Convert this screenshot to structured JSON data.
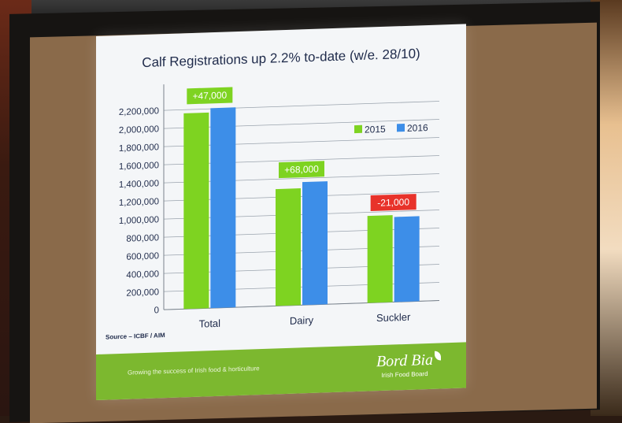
{
  "slide": {
    "title": "Calf Registrations up 2.2% to-date (w/e. 28/10)",
    "source": "Source – ICBF / AIM",
    "tagline": "Growing the success of Irish food & horticulture",
    "brand_name": "Bord Bia",
    "brand_sub": "Irish Food Board"
  },
  "chart_data": {
    "type": "bar",
    "title": "Calf Registrations up 2.2% to-date (w/e. 28/10)",
    "categories": [
      "Total",
      "Dairy",
      "Suckler"
    ],
    "series": [
      {
        "name": "2015",
        "values": [
          2160000,
          1290000,
          960000
        ]
      },
      {
        "name": "2016",
        "values": [
          2207000,
          1358000,
          939000
        ]
      }
    ],
    "annotations": [
      "+47,000",
      "+68,000",
      "-21,000"
    ],
    "ylim": [
      0,
      2400000
    ],
    "yticks": [
      0,
      200000,
      400000,
      600000,
      800000,
      1000000,
      1200000,
      1400000,
      1600000,
      1800000,
      2000000,
      2200000
    ],
    "ytick_labels": [
      "0",
      "200,000",
      "400,000",
      "600,000",
      "800,000",
      "1,000,000",
      "1,200,000",
      "1,400,000",
      "1,600,000",
      "1,800,000",
      "2,000,000",
      "2,200,000"
    ],
    "grid": true,
    "legend_position": "top-right",
    "colors": {
      "2015": "#7ed321",
      "2016": "#3d8ee8",
      "positive": "#7ed321",
      "negative": "#e8322a"
    }
  }
}
